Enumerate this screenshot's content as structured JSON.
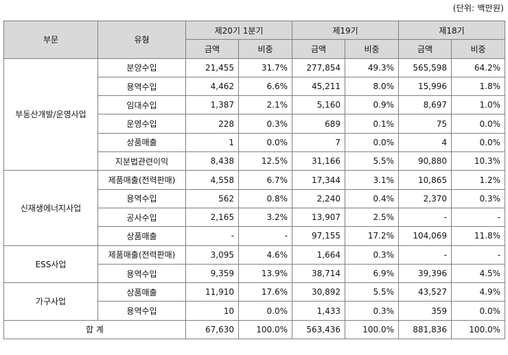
{
  "unit": "(단위: 백만원)",
  "headers": {
    "segment": "부문",
    "type": "유형",
    "periods": [
      "제20기 1분기",
      "제19기",
      "제18기"
    ],
    "amount": "금액",
    "ratio": "비중"
  },
  "groups": [
    {
      "segment": "부동산개발/운영사업",
      "rows": [
        {
          "type": "분양수입",
          "v": [
            "21,455",
            "31.7%",
            "277,854",
            "49.3%",
            "565,598",
            "64.2%"
          ]
        },
        {
          "type": "용역수입",
          "v": [
            "4,462",
            "6.6%",
            "45,211",
            "8.0%",
            "15,996",
            "1.8%"
          ]
        },
        {
          "type": "임대수입",
          "v": [
            "1,387",
            "2.1%",
            "5,160",
            "0.9%",
            "8,697",
            "1.0%"
          ]
        },
        {
          "type": "운영수입",
          "v": [
            "228",
            "0.3%",
            "689",
            "0.1%",
            "75",
            "0.0%"
          ]
        },
        {
          "type": "상품매출",
          "v": [
            "1",
            "0.0%",
            "7",
            "0.0%",
            "4",
            "0.0%"
          ]
        },
        {
          "type": "지분법관련이익",
          "v": [
            "8,438",
            "12.5%",
            "31,166",
            "5.5%",
            "90,880",
            "10.3%"
          ]
        }
      ]
    },
    {
      "segment": "신재생에너지사업",
      "rows": [
        {
          "type": "제품매출(전력판매)",
          "v": [
            "4,558",
            "6.7%",
            "17,344",
            "3.1%",
            "10,865",
            "1.2%"
          ]
        },
        {
          "type": "용역수입",
          "v": [
            "562",
            "0.8%",
            "2,240",
            "0.4%",
            "2,370",
            "0.3%"
          ]
        },
        {
          "type": "공사수입",
          "v": [
            "2,165",
            "3.2%",
            "13,907",
            "2.5%",
            "-",
            "-"
          ]
        },
        {
          "type": "상품매출",
          "v": [
            "-",
            "-",
            "97,155",
            "17.2%",
            "104,069",
            "11.8%"
          ]
        }
      ]
    },
    {
      "segment": "ESS사업",
      "rows": [
        {
          "type": "제품매출(전력판매)",
          "v": [
            "3,095",
            "4.6%",
            "1,664",
            "0.3%",
            "-",
            "-"
          ]
        },
        {
          "type": "용역수입",
          "v": [
            "9,359",
            "13.9%",
            "38,714",
            "6.9%",
            "39,396",
            "4.5%"
          ]
        }
      ]
    },
    {
      "segment": "가구사업",
      "rows": [
        {
          "type": "상품매출",
          "v": [
            "11,910",
            "17.6%",
            "30,892",
            "5.5%",
            "43,527",
            "4.9%"
          ]
        },
        {
          "type": "용역수입",
          "v": [
            "10",
            "0.0%",
            "1,433",
            "0.3%",
            "359",
            "0.0%"
          ]
        }
      ]
    }
  ],
  "total": {
    "label": "합 계",
    "v": [
      "67,630",
      "100.0%",
      "563,436",
      "100.0%",
      "881,836",
      "100.0%"
    ]
  }
}
